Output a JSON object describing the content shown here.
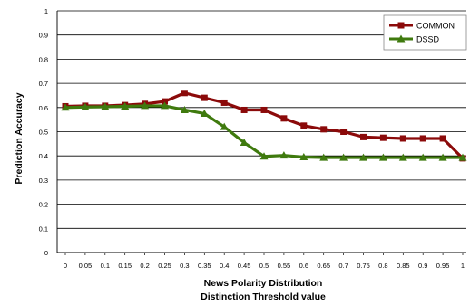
{
  "chart_data": {
    "type": "line",
    "x": [
      0,
      0.05,
      0.1,
      0.15,
      0.2,
      0.25,
      0.3,
      0.35,
      0.4,
      0.45,
      0.5,
      0.55,
      0.6,
      0.65,
      0.7,
      0.75,
      0.8,
      0.85,
      0.9,
      0.95,
      1
    ],
    "x_tick_labels": [
      "0",
      "0.05",
      "0.1",
      "0.15",
      "0.2",
      "0.25",
      "0.3",
      "0.35",
      "0.4",
      "0.45",
      "0.5",
      "0.55",
      "0.6",
      "0.65",
      "0.7",
      "0.75",
      "0.8",
      "0.85",
      "0.9",
      "0.95",
      "1"
    ],
    "y_tick_labels": [
      "0",
      "0.1",
      "0.2",
      "0.3",
      "0.4",
      "0.5",
      "0.6",
      "0.7",
      "0.8",
      "0.9",
      "1"
    ],
    "series": [
      {
        "name": "COMMON",
        "color": "#8b0a0a",
        "marker": "square",
        "values": [
          0.605,
          0.607,
          0.607,
          0.61,
          0.615,
          0.625,
          0.66,
          0.64,
          0.62,
          0.59,
          0.59,
          0.555,
          0.525,
          0.51,
          0.5,
          0.478,
          0.475,
          0.472,
          0.472,
          0.472,
          0.39
        ]
      },
      {
        "name": "DSSD",
        "color": "#3f7a0e",
        "marker": "triangle",
        "values": [
          0.6,
          0.602,
          0.603,
          0.605,
          0.607,
          0.607,
          0.59,
          0.575,
          0.52,
          0.455,
          0.398,
          0.402,
          0.395,
          0.393,
          0.393,
          0.393,
          0.393,
          0.393,
          0.393,
          0.393,
          0.393
        ]
      }
    ],
    "xlabel_line1": "News Polarity Distribution",
    "xlabel_line2": "Distinction Threshold value",
    "ylabel": "Prediction Accuracy",
    "xlim": [
      0,
      1
    ],
    "ylim": [
      0,
      1
    ],
    "grid": true,
    "legend_position": "top-right"
  }
}
